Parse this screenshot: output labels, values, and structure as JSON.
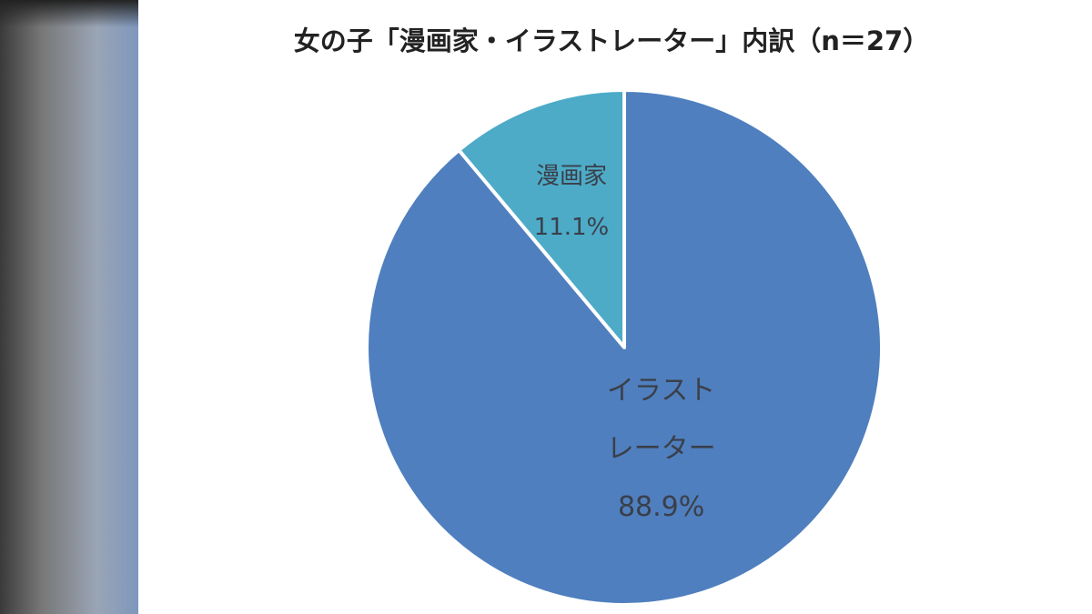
{
  "chart_data": {
    "type": "pie",
    "title": "女の子「漫画家・イラストレーター」内訳（n＝27）",
    "categories": [
      "漫画家",
      "イラストレーター"
    ],
    "values": [
      11.1,
      88.9
    ],
    "value_labels": [
      "11.1%",
      "88.9%"
    ],
    "colors": [
      "#4dabc7",
      "#4f7fbe"
    ]
  }
}
